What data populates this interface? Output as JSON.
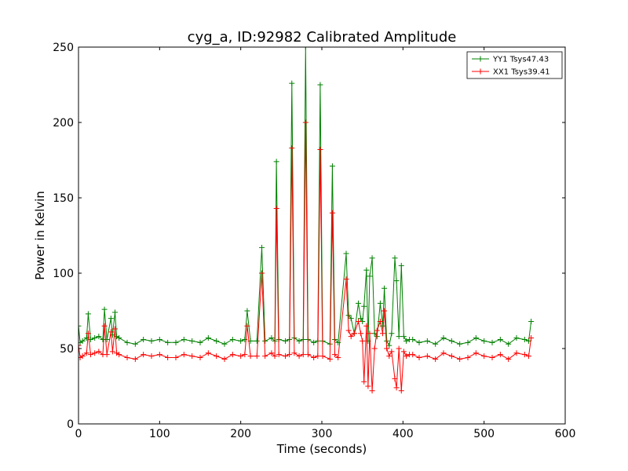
{
  "chart_data": {
    "type": "line",
    "title": "cyg_a, ID:92982 Calibrated Amplitude",
    "xlabel": "Time (seconds)",
    "ylabel": "Power in Kelvin",
    "xlim": [
      0,
      600
    ],
    "ylim": [
      0,
      250
    ],
    "xticks": [
      0,
      100,
      200,
      300,
      400,
      500,
      600
    ],
    "yticks": [
      0,
      50,
      100,
      150,
      200,
      250
    ],
    "grid": false,
    "legend_position": "top-right",
    "marker": "+",
    "series": [
      {
        "name": "YY1 Tsys47.43",
        "color": "#008000",
        "x": [
          0,
          2,
          5,
          10,
          12,
          15,
          20,
          25,
          30,
          32,
          35,
          40,
          42,
          45,
          47,
          50,
          60,
          70,
          80,
          90,
          100,
          110,
          120,
          130,
          140,
          150,
          160,
          170,
          180,
          190,
          200,
          205,
          208,
          212,
          220,
          226,
          230,
          238,
          242,
          244,
          247,
          255,
          260,
          263,
          266,
          272,
          277,
          280,
          283,
          290,
          295,
          298,
          301,
          310,
          313,
          316,
          320,
          330,
          333,
          336,
          340,
          345,
          348,
          350,
          352,
          355,
          357,
          359,
          362,
          365,
          368,
          372,
          375,
          377,
          380,
          383,
          386,
          390,
          392,
          395,
          398,
          401,
          404,
          408,
          412,
          420,
          430,
          440,
          450,
          460,
          470,
          480,
          490,
          500,
          510,
          520,
          530,
          540,
          550,
          555,
          558
        ],
        "y": [
          65,
          54,
          55,
          57,
          73,
          56,
          57,
          58,
          56,
          76,
          56,
          70,
          59,
          74,
          58,
          57,
          54,
          53,
          56,
          55,
          56,
          54,
          54,
          56,
          55,
          54,
          57,
          55,
          53,
          56,
          55,
          56,
          75,
          55,
          55,
          117,
          55,
          57,
          55,
          174,
          56,
          55,
          56,
          226,
          57,
          55,
          56,
          250,
          56,
          54,
          55,
          225,
          55,
          53,
          171,
          56,
          54,
          113,
          72,
          70,
          60,
          80,
          70,
          68,
          78,
          102,
          55,
          98,
          110,
          60,
          58,
          80,
          65,
          90,
          55,
          52,
          60,
          110,
          95,
          58,
          105,
          58,
          55,
          56,
          56,
          54,
          55,
          53,
          57,
          55,
          53,
          54,
          57,
          55,
          54,
          56,
          53,
          57,
          56,
          55,
          68
        ]
      },
      {
        "name": "XX1 Tsys39.41",
        "color": "#ff0000",
        "x": [
          0,
          2,
          5,
          10,
          12,
          15,
          20,
          25,
          30,
          32,
          35,
          40,
          42,
          45,
          47,
          50,
          60,
          70,
          80,
          90,
          100,
          110,
          120,
          130,
          140,
          150,
          160,
          170,
          180,
          190,
          200,
          205,
          208,
          212,
          220,
          226,
          230,
          238,
          242,
          244,
          247,
          255,
          260,
          263,
          266,
          272,
          277,
          280,
          283,
          290,
          295,
          298,
          301,
          310,
          313,
          316,
          320,
          330,
          333,
          336,
          340,
          345,
          348,
          350,
          352,
          355,
          357,
          359,
          362,
          365,
          368,
          372,
          375,
          377,
          380,
          383,
          386,
          390,
          392,
          395,
          398,
          401,
          404,
          408,
          412,
          420,
          430,
          440,
          450,
          460,
          470,
          480,
          490,
          500,
          510,
          520,
          530,
          540,
          550,
          555,
          558
        ],
        "y": [
          52,
          44,
          45,
          47,
          60,
          46,
          47,
          48,
          46,
          65,
          46,
          61,
          48,
          63,
          47,
          46,
          44,
          43,
          46,
          45,
          46,
          44,
          44,
          46,
          45,
          44,
          47,
          45,
          43,
          46,
          45,
          46,
          65,
          45,
          45,
          100,
          45,
          47,
          45,
          143,
          46,
          45,
          46,
          183,
          47,
          45,
          46,
          200,
          46,
          44,
          45,
          182,
          45,
          43,
          140,
          46,
          44,
          96,
          62,
          58,
          60,
          68,
          60,
          55,
          28,
          65,
          25,
          60,
          22,
          50,
          62,
          68,
          60,
          75,
          50,
          45,
          48,
          30,
          24,
          50,
          22,
          48,
          45,
          46,
          46,
          44,
          45,
          43,
          47,
          45,
          43,
          44,
          47,
          45,
          44,
          46,
          43,
          47,
          46,
          45,
          57
        ]
      }
    ]
  }
}
